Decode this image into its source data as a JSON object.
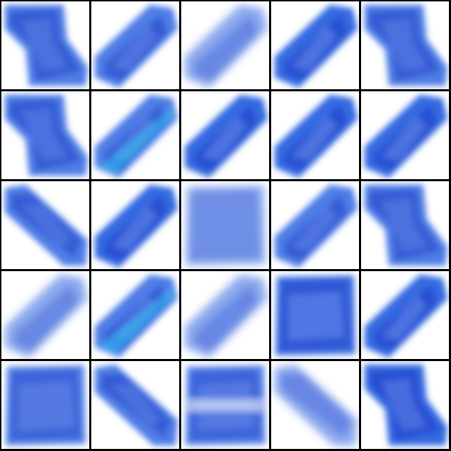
{
  "image": {
    "description_kind": "grid-of-blurred-blue-shapes",
    "rows": 5,
    "cols": 5,
    "colors": {
      "background": "#ffffff",
      "grid_line": "#000000",
      "deep_blue": "#1f3fc9",
      "mid_blue": "#2f66e0",
      "light_blue": "#6e93ee",
      "cyan": "#30c6f4"
    },
    "tiles": [
      {
        "shape": "s-left"
      },
      {
        "shape": "diag-up"
      },
      {
        "shape": "diag-up-faint"
      },
      {
        "shape": "diag-up-dense"
      },
      {
        "shape": "s-left"
      },
      {
        "shape": "s-left"
      },
      {
        "shape": "diag-up-cyan"
      },
      {
        "shape": "diag-up-dense"
      },
      {
        "shape": "diag-up-dense"
      },
      {
        "shape": "diag-up-dense"
      },
      {
        "shape": "diag-down"
      },
      {
        "shape": "diag-up-dense"
      },
      {
        "shape": "box-faint"
      },
      {
        "shape": "diag-up"
      },
      {
        "shape": "s-left"
      },
      {
        "shape": "diag-up-faint"
      },
      {
        "shape": "diag-up-cyan"
      },
      {
        "shape": "diag-up-faint"
      },
      {
        "shape": "box-dense"
      },
      {
        "shape": "diag-up-dense"
      },
      {
        "shape": "box"
      },
      {
        "shape": "diag-down"
      },
      {
        "shape": "box-stripe"
      },
      {
        "shape": "diag-down-faint"
      },
      {
        "shape": "s-left-dense"
      }
    ]
  }
}
